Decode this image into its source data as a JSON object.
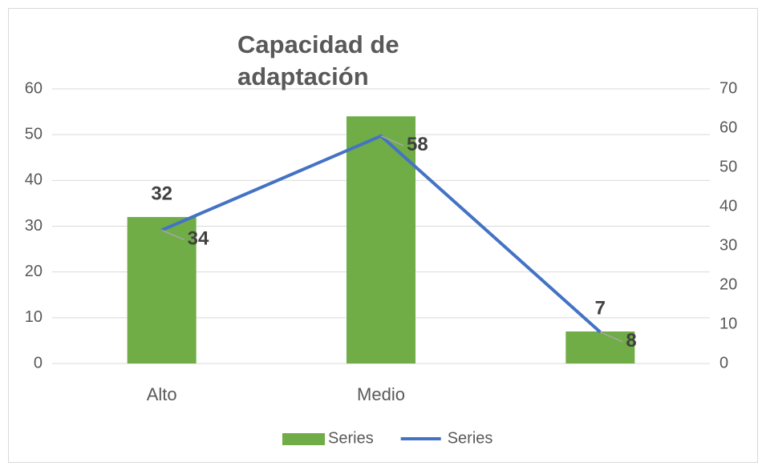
{
  "chart_data": {
    "type": "combo",
    "title": "Capacidad de adaptación",
    "categories": [
      "Alto",
      "Medio",
      null
    ],
    "series": [
      {
        "name": "Series",
        "type": "bar",
        "color": "#70ad47",
        "values": [
          32,
          54,
          7
        ],
        "value_labels": [
          "32",
          null,
          "7"
        ]
      },
      {
        "name": "Series",
        "type": "line",
        "axis": "y2",
        "color": "#4472c4",
        "values": [
          34,
          58,
          8
        ]
      }
    ],
    "ylim": [
      0,
      60
    ],
    "yticks": [
      0,
      10,
      20,
      30,
      40,
      50,
      60
    ],
    "y2lim": [
      0,
      70
    ],
    "y2ticks": [
      0,
      10,
      20,
      30,
      40,
      50,
      60,
      70
    ],
    "grid": true,
    "legend": "bottom"
  }
}
